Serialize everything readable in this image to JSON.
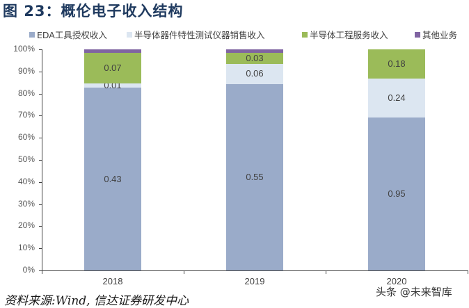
{
  "title": "图 23：概伦电子收入结构",
  "legend": [
    {
      "label": "EDA工具授权收入",
      "color": "#9aabc9"
    },
    {
      "label": "半导体器件特性测试仪器销售收入",
      "color": "#dce6f1"
    },
    {
      "label": "半导体工程服务收入",
      "color": "#9bbb59"
    },
    {
      "label": "其他业务",
      "color": "#8064a2"
    }
  ],
  "yaxis": {
    "ticks": [
      "0%",
      "10%",
      "20%",
      "30%",
      "40%",
      "50%",
      "60%",
      "70%",
      "80%",
      "90%",
      "100%"
    ]
  },
  "xaxis": {
    "ticks": [
      "2018",
      "2019",
      "2020"
    ]
  },
  "bars": [
    {
      "year": "2018",
      "segments": [
        {
          "series": "EDA工具授权收入",
          "pct": 82.7,
          "label": "0.43"
        },
        {
          "series": "半导体器件特性测试仪器销售收入",
          "pct": 1.8,
          "label": "0.01"
        },
        {
          "series": "半导体工程服务收入",
          "pct": 13.9,
          "label": "0.07"
        },
        {
          "series": "其他业务",
          "pct": 1.6,
          "label": ""
        }
      ]
    },
    {
      "year": "2019",
      "segments": [
        {
          "series": "EDA工具授权收入",
          "pct": 84.3,
          "label": "0.55"
        },
        {
          "series": "半导体器件特性测试仪器销售收入",
          "pct": 9.1,
          "label": "0.06"
        },
        {
          "series": "半导体工程服务收入",
          "pct": 5.0,
          "label": "0.03"
        },
        {
          "series": "其他业务",
          "pct": 1.6,
          "label": ""
        }
      ]
    },
    {
      "year": "2020",
      "segments": [
        {
          "series": "EDA工具授权收入",
          "pct": 69.2,
          "label": "0.95"
        },
        {
          "series": "半导体器件特性测试仪器销售收入",
          "pct": 17.6,
          "label": "0.24"
        },
        {
          "series": "半导体工程服务收入",
          "pct": 13.2,
          "label": "0.18"
        },
        {
          "series": "其他业务",
          "pct": 0,
          "label": ""
        }
      ]
    }
  ],
  "source": "资料来源:Wind, 信达证券研发中心",
  "watermark": "头条 @未来智库",
  "chart_data": {
    "type": "bar",
    "stacked": true,
    "percent_stacked": true,
    "title": "图 23：概伦电子收入结构",
    "xlabel": "",
    "ylabel": "",
    "ylim": [
      0,
      100
    ],
    "y_tick_format": "percent",
    "categories": [
      "2018",
      "2019",
      "2020"
    ],
    "series": [
      {
        "name": "EDA工具授权收入",
        "color": "#9aabc9",
        "values": [
          0.43,
          0.55,
          0.95
        ],
        "share_pct": [
          82.7,
          84.3,
          69.2
        ]
      },
      {
        "name": "半导体器件特性测试仪器销售收入",
        "color": "#dce6f1",
        "values": [
          0.01,
          0.06,
          0.24
        ],
        "share_pct": [
          1.8,
          9.1,
          17.6
        ]
      },
      {
        "name": "半导体工程服务收入",
        "color": "#9bbb59",
        "values": [
          0.07,
          0.03,
          0.18
        ],
        "share_pct": [
          13.9,
          5.0,
          13.2
        ]
      },
      {
        "name": "其他业务",
        "color": "#8064a2",
        "values": [
          null,
          null,
          null
        ],
        "share_pct": [
          1.6,
          1.6,
          0
        ]
      }
    ],
    "data_labels": true,
    "grid": false,
    "legend_position": "top",
    "source": "资料来源:Wind, 信达证券研发中心"
  }
}
